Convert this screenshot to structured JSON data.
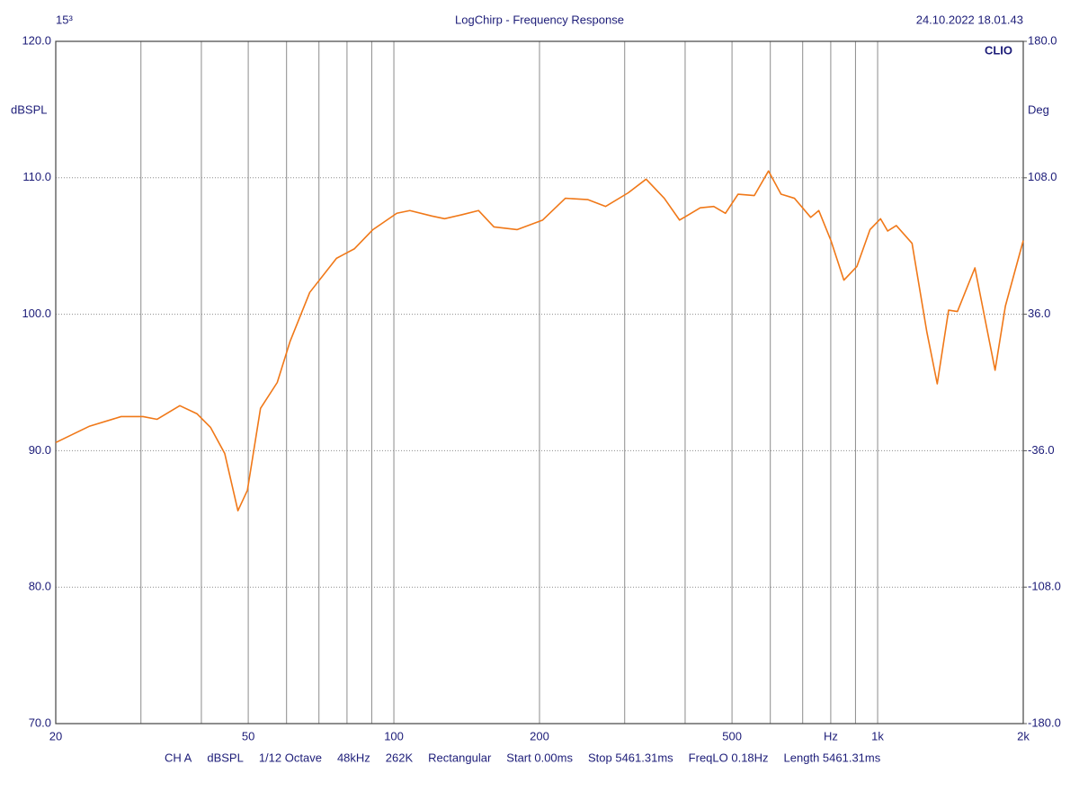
{
  "chart_data": {
    "type": "line",
    "title": "LogChirp - Frequency Response",
    "corner_label": "15³",
    "date": "24.10.2022 18.01.43",
    "brand": "CLIO",
    "ylabel": "dBSPL",
    "y2label": "Deg",
    "footer": [
      "CH A",
      "dBSPL",
      "1/12 Octave",
      "48kHz",
      "262K",
      "Rectangular",
      "Start 0.00ms",
      "Stop 5461.31ms",
      "FreqLO 0.18Hz",
      "Length 5461.31ms"
    ],
    "xscale": "log",
    "grid": true,
    "xlim": [
      20,
      2000
    ],
    "ylim": [
      70,
      120
    ],
    "y2lim": [
      -180,
      180
    ],
    "xticks": [
      20,
      {
        "value": 30,
        "label": null
      },
      {
        "value": 40,
        "label": null
      },
      50,
      {
        "value": 60,
        "label": null
      },
      {
        "value": 70,
        "label": null
      },
      {
        "value": 80,
        "label": null
      },
      {
        "value": 90,
        "label": null
      },
      100,
      200,
      {
        "value": 300,
        "label": null
      },
      {
        "value": 400,
        "label": null
      },
      500,
      {
        "value": 600,
        "label": null
      },
      {
        "value": 700,
        "label": null
      },
      {
        "value": 800,
        "label": "Hz"
      },
      {
        "value": 900,
        "label": null
      },
      {
        "value": 1000,
        "label": "1k"
      },
      {
        "value": 2000,
        "label": "2k"
      }
    ],
    "yticks": [
      {
        "value": 70,
        "label": "70.0"
      },
      {
        "value": 80,
        "label": "80.0"
      },
      {
        "value": 90,
        "label": "90.0"
      },
      {
        "value": 100,
        "label": "100.0"
      },
      {
        "value": 110,
        "label": "110.0"
      },
      {
        "value": 120,
        "label": "120.0"
      }
    ],
    "y2ticks": [
      {
        "value": -180,
        "label": "-180.0"
      },
      {
        "value": -108,
        "label": "-108.0"
      },
      {
        "value": -36,
        "label": "-36.0"
      },
      {
        "value": 36,
        "label": "36.0"
      },
      {
        "value": 108,
        "label": "108.0"
      },
      {
        "value": 180,
        "label": "180.0"
      }
    ],
    "x": [
      20,
      23.5,
      27.3,
      30.3,
      32.4,
      36.1,
      39.2,
      41.8,
      44.7,
      47.6,
      49.8,
      53,
      57.4,
      61,
      67,
      76.1,
      82.9,
      90.5,
      101.4,
      107.9,
      119.8,
      127.3,
      138.4,
      149.6,
      161,
      179.7,
      203,
      226.2,
      251.9,
      273.9,
      305.1,
      332.2,
      362.2,
      389.6,
      429.8,
      458.4,
      484.6,
      514.6,
      556.1,
      594.9,
      631.4,
      673,
      727.2,
      755.7,
      800.7,
      851.6,
      905.9,
      964.3,
      1014,
      1049,
      1093,
      1178,
      1264,
      1328,
      1402,
      1462,
      1589,
      1749,
      1837,
      2000
    ],
    "series": [
      {
        "color": "#f07818",
        "values": [
          90.6,
          91.8,
          92.5,
          92.5,
          92.3,
          93.3,
          92.7,
          91.7,
          89.8,
          85.6,
          87.1,
          93.1,
          95.0,
          98.0,
          101.6,
          104.1,
          104.8,
          106.2,
          107.4,
          107.6,
          107.2,
          107.0,
          107.3,
          107.6,
          106.4,
          106.2,
          106.9,
          108.5,
          108.4,
          107.9,
          108.9,
          109.9,
          108.5,
          106.9,
          107.8,
          107.9,
          107.4,
          108.8,
          108.7,
          110.5,
          108.8,
          108.5,
          107.1,
          107.6,
          105.4,
          102.5,
          103.5,
          106.2,
          107.0,
          106.1,
          106.5,
          105.2,
          98.7,
          94.9,
          100.3,
          100.2,
          103.4,
          95.9,
          100.6,
          105.4
        ]
      }
    ]
  }
}
